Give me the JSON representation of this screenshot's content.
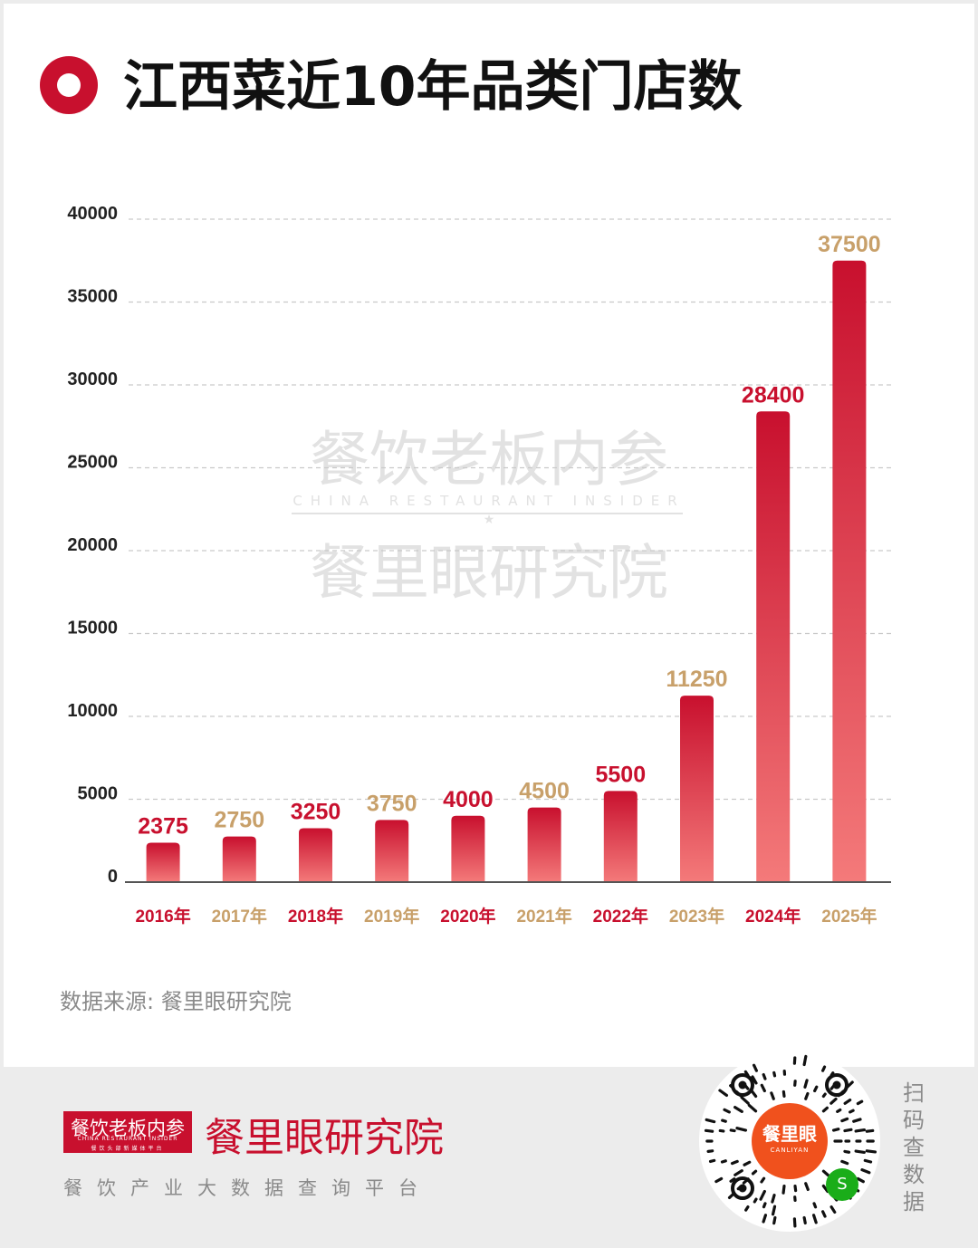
{
  "title": "江西菜近10年品类门店数",
  "watermark": {
    "line1": "餐饮老板内参",
    "line2": "CHINA RESTAURANT INSIDER",
    "line3": "餐里眼研究院"
  },
  "chart_data": {
    "type": "bar",
    "title": "江西菜近10年品类门店数",
    "categories": [
      "2016年",
      "2017年",
      "2018年",
      "2019年",
      "2020年",
      "2021年",
      "2022年",
      "2023年",
      "2024年",
      "2025年"
    ],
    "values": [
      2375,
      2750,
      3250,
      3750,
      4000,
      4500,
      5500,
      11250,
      28400,
      37500
    ],
    "value_labels": [
      "2375",
      "2750",
      "3250",
      "3750",
      "4000",
      "4500",
      "5500",
      "11250",
      "28400",
      "37500"
    ],
    "ylim": [
      0,
      40000
    ],
    "yticks": [
      0,
      5000,
      10000,
      15000,
      20000,
      25000,
      30000,
      35000,
      40000
    ],
    "ytick_labels": [
      "0",
      "5000",
      "10000",
      "15000",
      "20000",
      "25000",
      "30000",
      "35000",
      "40000"
    ],
    "grid": true,
    "grid_style": "dashed",
    "label_colors": [
      "#c8102e",
      "#c8a06a"
    ],
    "bar_gradient": [
      "#c8102e",
      "#f47a7a"
    ],
    "xlabel": "",
    "ylabel": ""
  },
  "source": "数据来源: 餐里眼研究院",
  "footer": {
    "logo_main": "餐饮老板内参",
    "logo_sub1": "CHINA RESTAURANT INSIDER",
    "logo_sub2": "餐饮头部新媒体平台",
    "brand": "餐里眼研究院",
    "tagline": "餐饮产业大数据查询平台",
    "qr_center": "餐里眼",
    "qr_center_sub": "CANLIYAN",
    "scan_text": [
      "扫",
      "码",
      "查",
      "数",
      "据"
    ]
  },
  "colors": {
    "accent": "#c8102e",
    "gold": "#c8a06a",
    "text_dark": "#111111",
    "text_gray": "#8a8a8a",
    "wechat_green": "#1aad19",
    "qr_orange": "#f0511d"
  },
  "icons": {
    "title_marker": "red-ring-icon",
    "qr": "qr-code-icon",
    "wechat": "wechat-mini-program-icon"
  }
}
